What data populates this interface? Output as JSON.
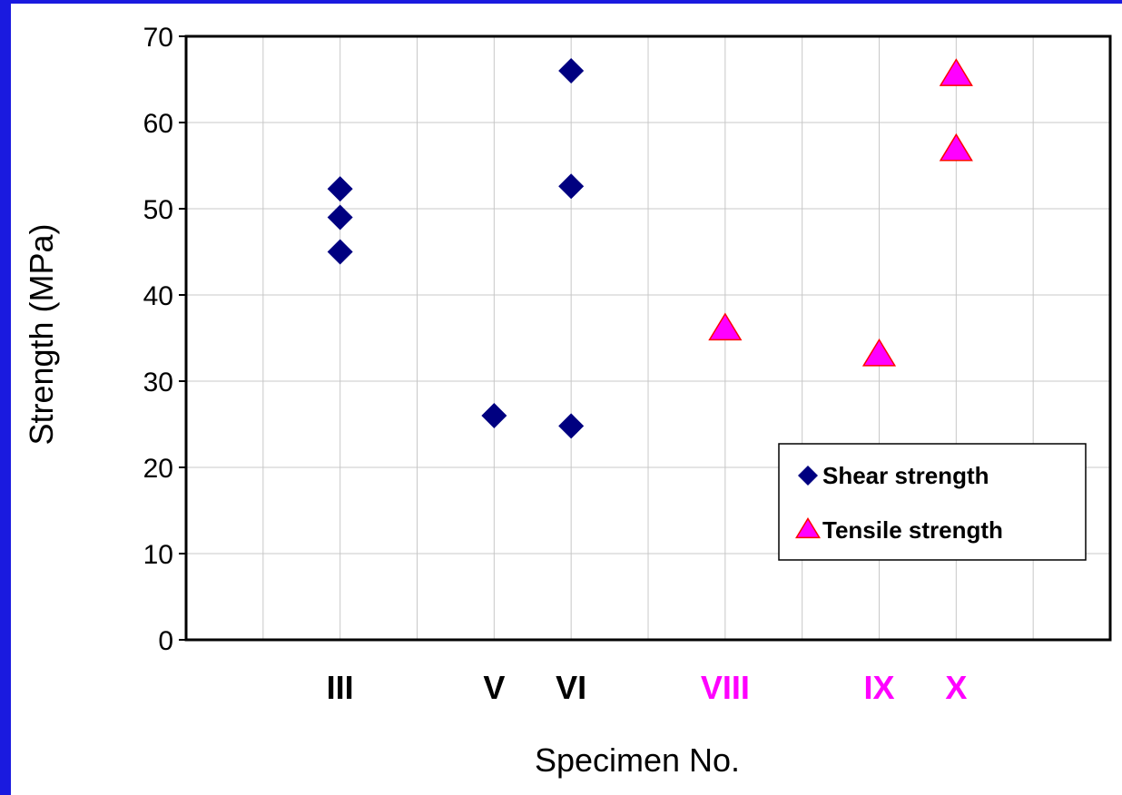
{
  "chart_data": {
    "type": "scatter",
    "xlabel": "Specimen No.",
    "ylabel": "Strength (MPa)",
    "ylim": [
      0,
      70
    ],
    "yticks": [
      0,
      10,
      20,
      30,
      40,
      50,
      60,
      70
    ],
    "xlim": [
      0,
      12
    ],
    "grid": true,
    "legend_position": "right",
    "categories": [
      {
        "label": "III",
        "x": 2,
        "color": "#000000"
      },
      {
        "label": "V",
        "x": 4,
        "color": "#000000"
      },
      {
        "label": "VI",
        "x": 5,
        "color": "#000000"
      },
      {
        "label": "VIII",
        "x": 7,
        "color": "#ff00ff"
      },
      {
        "label": "IX",
        "x": 9,
        "color": "#ff00ff"
      },
      {
        "label": "X",
        "x": 10,
        "color": "#ff00ff"
      }
    ],
    "series": [
      {
        "name": "Shear strength",
        "marker": "diamond",
        "color": "#000080",
        "points": [
          {
            "x": 2,
            "y": 52.3
          },
          {
            "x": 2,
            "y": 49.0
          },
          {
            "x": 2,
            "y": 45.0
          },
          {
            "x": 4,
            "y": 26.0
          },
          {
            "x": 5,
            "y": 66.0
          },
          {
            "x": 5,
            "y": 52.6
          },
          {
            "x": 5,
            "y": 24.8
          }
        ]
      },
      {
        "name": "Tensile strength",
        "marker": "triangle",
        "color": "#ff00ff",
        "edge_color": "#ff0000",
        "points": [
          {
            "x": 7,
            "y": 36.0
          },
          {
            "x": 9,
            "y": 33.0
          },
          {
            "x": 10,
            "y": 65.5
          },
          {
            "x": 10,
            "y": 56.8
          }
        ]
      }
    ]
  }
}
